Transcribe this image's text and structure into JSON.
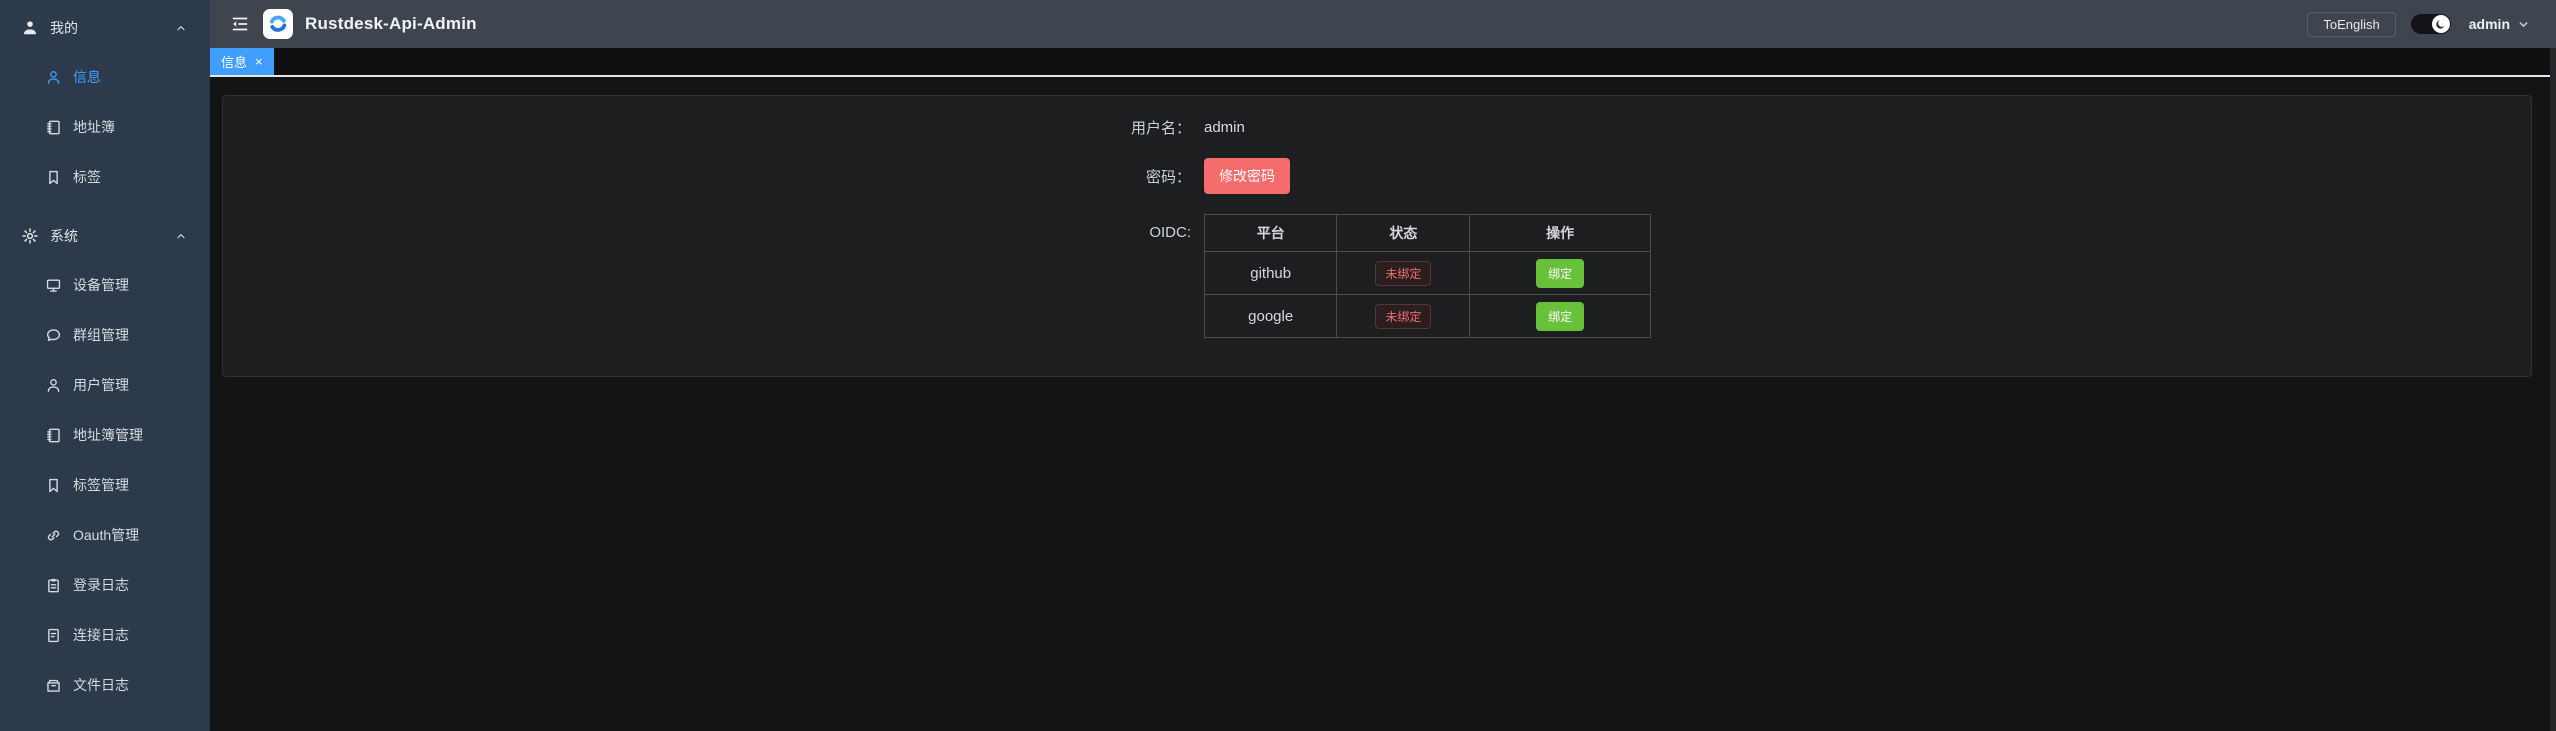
{
  "app": {
    "title": "Rustdesk-Api-Admin"
  },
  "header": {
    "language_button": "ToEnglish",
    "user": "admin",
    "theme_toggle_state": "dark-on"
  },
  "sidebar": {
    "groups": [
      {
        "id": "mine",
        "label": "我的",
        "icon": "user-filled-icon",
        "expanded": true,
        "items": [
          {
            "id": "info",
            "label": "信息",
            "icon": "user-icon",
            "active": true
          },
          {
            "id": "address-book",
            "label": "地址簿",
            "icon": "notebook-icon",
            "active": false
          },
          {
            "id": "tags",
            "label": "标签",
            "icon": "bookmark-icon",
            "active": false
          }
        ]
      },
      {
        "id": "system",
        "label": "系统",
        "icon": "gear-icon",
        "expanded": true,
        "items": [
          {
            "id": "device-management",
            "label": "设备管理",
            "icon": "monitor-icon",
            "active": false
          },
          {
            "id": "group-management",
            "label": "群组管理",
            "icon": "chat-icon",
            "active": false
          },
          {
            "id": "user-management",
            "label": "用户管理",
            "icon": "user-icon",
            "active": false
          },
          {
            "id": "address-book-management",
            "label": "地址簿管理",
            "icon": "notebook-icon",
            "active": false
          },
          {
            "id": "tag-management",
            "label": "标签管理",
            "icon": "bookmark-icon",
            "active": false
          },
          {
            "id": "oauth-management",
            "label": "Oauth管理",
            "icon": "link-icon",
            "active": false
          },
          {
            "id": "login-logs",
            "label": "登录日志",
            "icon": "clipboard-icon",
            "active": false
          },
          {
            "id": "connection-logs",
            "label": "连接日志",
            "icon": "document-icon",
            "active": false
          },
          {
            "id": "file-logs",
            "label": "文件日志",
            "icon": "archive-icon",
            "active": false
          }
        ]
      }
    ]
  },
  "tabs": [
    {
      "label": "信息",
      "active": true,
      "close_glyph": "×"
    }
  ],
  "form": {
    "username_label": "用户名：",
    "username_value": "admin",
    "password_label": "密码：",
    "change_password_button": "修改密码",
    "oidc_label": "OIDC:"
  },
  "oidc_table": {
    "headers": [
      "平台",
      "状态",
      "操作"
    ],
    "rows": [
      {
        "platform": "github",
        "status": "未绑定",
        "action": "绑定"
      },
      {
        "platform": "google",
        "status": "未绑定",
        "action": "绑定"
      }
    ]
  },
  "colors": {
    "primary": "#409eff",
    "danger": "#f56c6c",
    "success": "#67c23a",
    "sidebar_bg": "#2d3a4b",
    "topbar_bg": "#3e454e"
  }
}
